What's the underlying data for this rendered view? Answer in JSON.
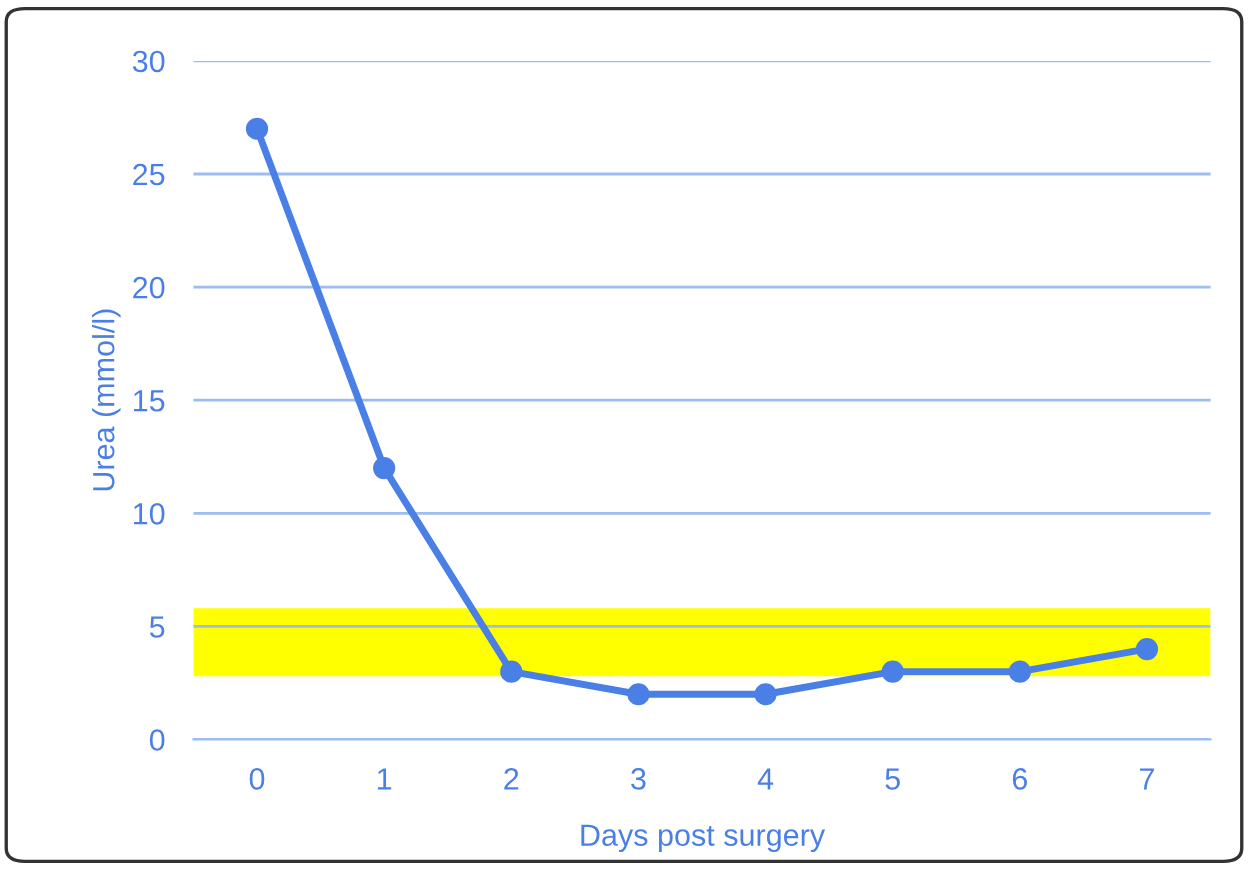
{
  "chart_data": {
    "type": "line",
    "xlabel": "Days post surgery",
    "ylabel": "Urea (mmol/l)",
    "categories": [
      "0",
      "1",
      "2",
      "3",
      "4",
      "5",
      "6",
      "7"
    ],
    "series": [
      {
        "color": "#4a7fe6",
        "values": [
          27,
          12,
          3,
          2,
          2,
          3,
          3,
          4
        ]
      }
    ],
    "ylim": [
      0,
      30
    ],
    "yticks": [
      0,
      5,
      10,
      15,
      20,
      25,
      30
    ],
    "grid": "y",
    "marker": "circle",
    "line_style": "solid",
    "legend": false,
    "bands": [
      {
        "axis": "y",
        "from": 2.8,
        "to": 5.8,
        "color": "#ffff00"
      }
    ]
  }
}
